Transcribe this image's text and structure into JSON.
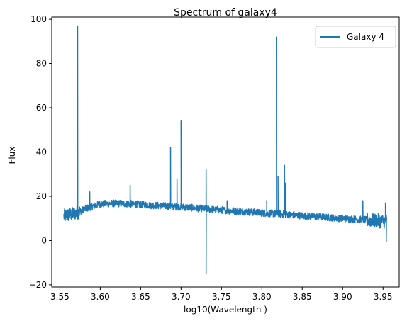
{
  "chart_data": {
    "type": "line",
    "title": "Spectrum of galaxy4",
    "xlabel": "log10(Wavelength )",
    "ylabel": "Flux",
    "xlim": [
      3.54,
      3.97
    ],
    "ylim": [
      -21,
      101
    ],
    "xticks": [
      "3.55",
      "3.60",
      "3.65",
      "3.70",
      "3.75",
      "3.80",
      "3.85",
      "3.90",
      "3.95"
    ],
    "yticks": [
      "−20",
      "0",
      "20",
      "40",
      "60",
      "80",
      "100"
    ],
    "legend": "top-right",
    "grid": false,
    "series": [
      {
        "name": "Galaxy 4",
        "color": "#1f77b4",
        "continuum": [
          [
            3.555,
            11
          ],
          [
            3.57,
            12.5
          ],
          [
            3.58,
            14
          ],
          [
            3.59,
            15.5
          ],
          [
            3.6,
            16.5
          ],
          [
            3.62,
            16.8
          ],
          [
            3.64,
            16.5
          ],
          [
            3.66,
            16.0
          ],
          [
            3.68,
            15.6
          ],
          [
            3.7,
            15.2
          ],
          [
            3.72,
            14.6
          ],
          [
            3.74,
            14.0
          ],
          [
            3.76,
            13.5
          ],
          [
            3.78,
            13.0
          ],
          [
            3.8,
            12.5
          ],
          [
            3.82,
            12.0
          ],
          [
            3.84,
            11.5
          ],
          [
            3.86,
            11.0
          ],
          [
            3.88,
            10.5
          ],
          [
            3.9,
            10.0
          ],
          [
            3.92,
            9.5
          ],
          [
            3.94,
            9.0
          ],
          [
            3.955,
            8.5
          ]
        ],
        "features": [
          {
            "x": 3.572,
            "y": 97
          },
          {
            "x": 3.587,
            "y": 22
          },
          {
            "x": 3.637,
            "y": 25
          },
          {
            "x": 3.687,
            "y": 42
          },
          {
            "x": 3.695,
            "y": 28
          },
          {
            "x": 3.7,
            "y": 54
          },
          {
            "x": 3.731,
            "y": 32
          },
          {
            "x": 3.731,
            "y": -15
          },
          {
            "x": 3.757,
            "y": 18
          },
          {
            "x": 3.806,
            "y": 18
          },
          {
            "x": 3.818,
            "y": 92
          },
          {
            "x": 3.82,
            "y": 29
          },
          {
            "x": 3.828,
            "y": 34
          },
          {
            "x": 3.829,
            "y": 26
          },
          {
            "x": 3.925,
            "y": 18
          },
          {
            "x": 3.953,
            "y": 17
          },
          {
            "x": 3.954,
            "y": -0.5
          }
        ]
      }
    ]
  }
}
